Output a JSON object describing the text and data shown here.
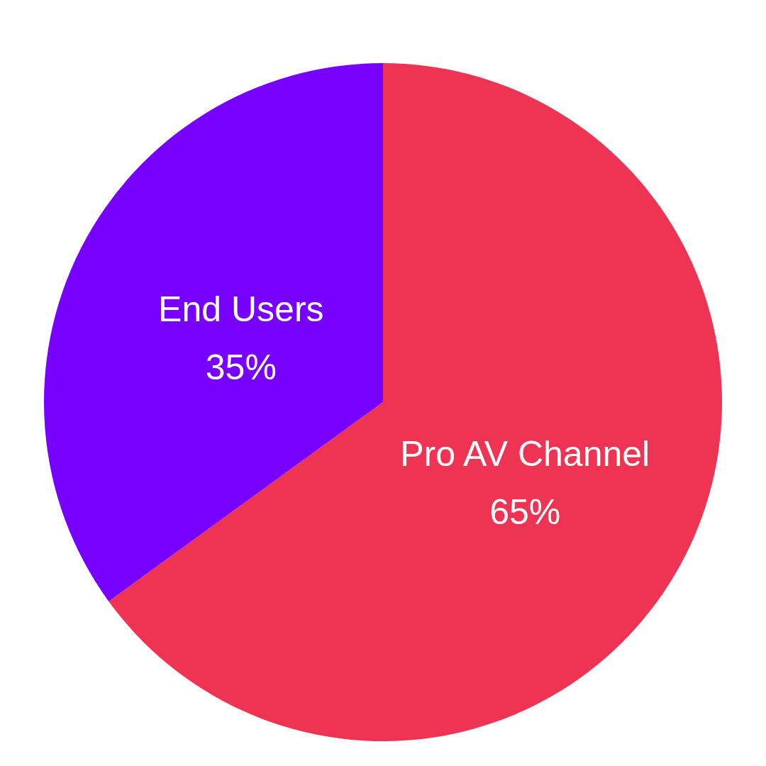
{
  "chart_data": {
    "type": "pie",
    "categories": [
      "Pro AV Channel",
      "End Users"
    ],
    "values": [
      65,
      35
    ],
    "colors": [
      "#ef3453",
      "#7700ff"
    ],
    "value_labels": [
      "65%",
      "35%"
    ]
  }
}
